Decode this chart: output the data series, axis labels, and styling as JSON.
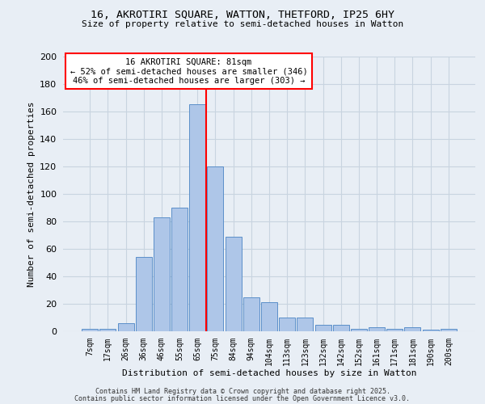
{
  "title1": "16, AKROTIRI SQUARE, WATTON, THETFORD, IP25 6HY",
  "title2": "Size of property relative to semi-detached houses in Watton",
  "xlabel": "Distribution of semi-detached houses by size in Watton",
  "ylabel": "Number of semi-detached properties",
  "categories": [
    "7sqm",
    "17sqm",
    "26sqm",
    "36sqm",
    "46sqm",
    "55sqm",
    "65sqm",
    "75sqm",
    "84sqm",
    "94sqm",
    "104sqm",
    "113sqm",
    "123sqm",
    "132sqm",
    "142sqm",
    "152sqm",
    "161sqm",
    "171sqm",
    "181sqm",
    "190sqm",
    "200sqm"
  ],
  "values": [
    2,
    2,
    6,
    54,
    83,
    90,
    165,
    120,
    69,
    25,
    21,
    10,
    10,
    5,
    5,
    2,
    3,
    2,
    3,
    1,
    2
  ],
  "bar_color": "#aec6e8",
  "bar_edge_color": "#5b8fc9",
  "grid_color": "#c8d4e0",
  "background_color": "#e8eef5",
  "property_line_x": 6.5,
  "annotation_text": "16 AKROTIRI SQUARE: 81sqm\n← 52% of semi-detached houses are smaller (346)\n46% of semi-detached houses are larger (303) →",
  "footnote1": "Contains HM Land Registry data © Crown copyright and database right 2025.",
  "footnote2": "Contains public sector information licensed under the Open Government Licence v3.0.",
  "ylim": [
    0,
    200
  ],
  "yticks": [
    0,
    20,
    40,
    60,
    80,
    100,
    120,
    140,
    160,
    180,
    200
  ]
}
